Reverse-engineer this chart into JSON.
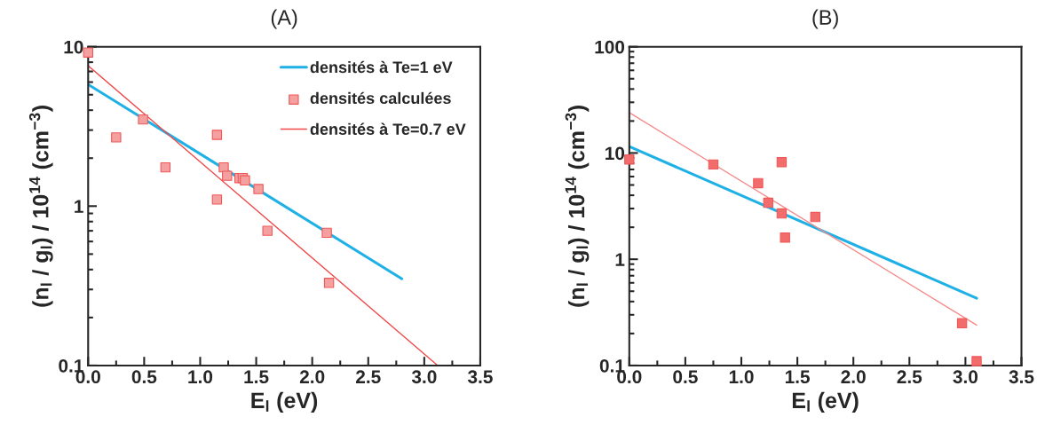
{
  "chart_data": [
    {
      "type": "scatter",
      "title": "(A)",
      "xlabel": "E$_{l}$ (eV)",
      "ylabel": "(n$_{l}$ / g$_{l}$) / 10$^{14}$ (cm$^{−3}$)",
      "log": "y",
      "grid": false,
      "legend": "top right",
      "xlim": [
        0,
        3.5
      ],
      "xticks": [
        {
          "value": 0,
          "label": "0.0"
        },
        {
          "value": 0.5,
          "label": "0.5"
        },
        {
          "value": 1,
          "label": "1.0"
        },
        {
          "value": 1.5,
          "label": "1.5"
        },
        {
          "value": 2,
          "label": "2.0"
        },
        {
          "value": 2.5,
          "label": "2.5"
        },
        {
          "value": 3,
          "label": "3.0"
        },
        {
          "value": 3.5,
          "label": "3.5"
        }
      ],
      "ylim": [
        0.1,
        10
      ],
      "yticks": [
        0.1,
        1,
        10
      ],
      "series": [
        {
          "name": "densités à Te=1 eV",
          "type": "line",
          "color": "#1fb0e6",
          "x": [
            0,
            2.8
          ],
          "values": [
            5.8,
            0.35
          ]
        },
        {
          "name": "densités calculées",
          "marker": "square",
          "color": "#f4a0a0",
          "x": [
            0,
            0.25,
            0.49,
            0.69,
            1.15,
            1.15,
            1.21,
            1.24,
            1.35,
            1.38,
            1.4,
            1.52,
            1.6,
            2.13,
            2.15
          ],
          "values": [
            9.2,
            2.7,
            3.5,
            1.75,
            2.8,
            1.1,
            1.75,
            1.55,
            1.5,
            1.5,
            1.45,
            1.28,
            0.7,
            0.68,
            0.33
          ]
        },
        {
          "name": "densités à Te=0.7 eV",
          "type": "line",
          "color": "#f04848",
          "x": [
            0,
            3.12
          ],
          "values": [
            7.6,
            0.1
          ]
        }
      ]
    },
    {
      "type": "scatter",
      "title": "(B)",
      "xlabel": "E$_{l}$ (eV)",
      "ylabel": "(n$_{l}$ / g$_{l}$) / 10$^{14}$ (cm$^{−3}$)",
      "log": "y",
      "grid": false,
      "legend": false,
      "xlim": [
        0,
        3.5
      ],
      "xticks": [
        {
          "value": 0,
          "label": "0.0"
        },
        {
          "value": 0.5,
          "label": "0.5"
        },
        {
          "value": 1,
          "label": "1.0"
        },
        {
          "value": 1.5,
          "label": "1.5"
        },
        {
          "value": 2,
          "label": "2.0"
        },
        {
          "value": 2.5,
          "label": "2.5"
        },
        {
          "value": 3,
          "label": "3.0"
        },
        {
          "value": 3.5,
          "label": "3.5"
        }
      ],
      "ylim": [
        0.1,
        100
      ],
      "yticks": [
        0.1,
        1,
        10,
        100
      ],
      "series": [
        {
          "type": "line",
          "color": "#1fb0e6",
          "x": [
            0,
            3.1
          ],
          "values": [
            11.5,
            0.43
          ]
        },
        {
          "marker": "square",
          "color": "#f26c6c",
          "x": [
            0,
            0.75,
            1.15,
            1.24,
            1.36,
            1.36,
            1.39,
            1.66,
            2.97,
            3.1
          ],
          "values": [
            8.7,
            7.8,
            5.2,
            3.4,
            8.2,
            2.7,
            1.6,
            2.5,
            0.25,
            0.11
          ]
        },
        {
          "type": "line",
          "color": "#f58a8a",
          "x": [
            0,
            3.1
          ],
          "values": [
            24,
            0.24
          ]
        }
      ]
    }
  ]
}
